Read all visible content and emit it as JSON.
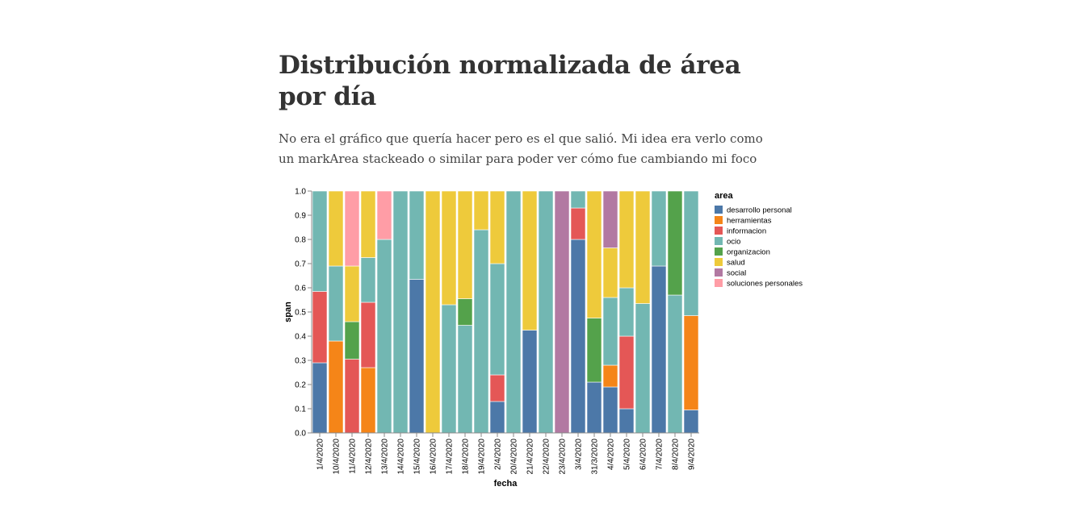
{
  "header": {
    "title": "Distribución normalizada de área por día",
    "subtitle": "No era el gráfico que quería hacer pero es el que salió. Mi idea era verlo como un markArea stackeado o similar para poder ver cómo fue cambiando mi foco"
  },
  "chart_data": {
    "type": "bar",
    "stacked": "normalized",
    "title": "",
    "xlabel": "fecha",
    "ylabel": "span",
    "ylim": [
      0,
      1
    ],
    "yticks": [
      "0.0",
      "0.1",
      "0.2",
      "0.3",
      "0.4",
      "0.5",
      "0.6",
      "0.7",
      "0.8",
      "0.9",
      "1.0"
    ],
    "legend_title": "area",
    "legend_position": "right",
    "grid": false,
    "categories": [
      "1/4/2020",
      "10/4/2020",
      "11/4/2020",
      "12/4/2020",
      "13/4/2020",
      "14/4/2020",
      "15/4/2020",
      "16/4/2020",
      "17/4/2020",
      "18/4/2020",
      "19/4/2020",
      "2/4/2020",
      "20/4/2020",
      "21/4/2020",
      "22/4/2020",
      "23/4/2020",
      "3/4/2020",
      "31/3/2020",
      "4/4/2020",
      "5/4/2020",
      "6/4/2020",
      "7/4/2020",
      "8/4/2020",
      "9/4/2020"
    ],
    "series": [
      {
        "name": "desarrollo personal",
        "color": "#4c78a8",
        "values": [
          0.29,
          0,
          0,
          0,
          0,
          0,
          0.635,
          0,
          0,
          0,
          0,
          0.13,
          0,
          0.425,
          0,
          0,
          0.8,
          0.21,
          0.19,
          0.1,
          0,
          0.69,
          0,
          0.095
        ]
      },
      {
        "name": "herramientas",
        "color": "#f58518",
        "values": [
          0,
          0.38,
          0,
          0.27,
          0,
          0,
          0,
          0,
          0,
          0,
          0,
          0,
          0,
          0,
          0,
          0,
          0,
          0,
          0.09,
          0,
          0,
          0,
          0,
          0.39
        ]
      },
      {
        "name": "informacion",
        "color": "#e45756",
        "values": [
          0.295,
          0,
          0.305,
          0.27,
          0,
          0,
          0,
          0,
          0,
          0,
          0,
          0.11,
          0,
          0,
          0,
          0,
          0.13,
          0,
          0,
          0.3,
          0,
          0,
          0,
          0
        ]
      },
      {
        "name": "ocio",
        "color": "#72b7b2",
        "values": [
          0.415,
          0.31,
          0,
          0.185,
          0.8,
          1,
          0.365,
          0,
          0.53,
          0.445,
          0.84,
          0.46,
          1,
          0,
          1,
          0,
          0.07,
          0,
          0.28,
          0.2,
          0.535,
          0.31,
          0.57,
          0.515
        ]
      },
      {
        "name": "organizacion",
        "color": "#54a24b",
        "values": [
          0,
          0,
          0.155,
          0,
          0,
          0,
          0,
          0,
          0,
          0.11,
          0,
          0,
          0,
          0,
          0,
          0,
          0,
          0.265,
          0,
          0,
          0,
          0,
          0.43,
          0
        ]
      },
      {
        "name": "salud",
        "color": "#eeca3b",
        "values": [
          0,
          0.31,
          0.23,
          0.275,
          0,
          0,
          0,
          1,
          0.47,
          0.445,
          0.16,
          0.3,
          0,
          0.575,
          0,
          0,
          0,
          0.525,
          0.205,
          0.4,
          0.465,
          0,
          0,
          0
        ]
      },
      {
        "name": "social",
        "color": "#b279a2",
        "values": [
          0,
          0,
          0,
          0,
          0,
          0,
          0,
          0,
          0,
          0,
          0,
          0,
          0,
          0,
          0,
          1,
          0,
          0,
          0.235,
          0,
          0,
          0,
          0,
          0
        ]
      },
      {
        "name": "soluciones personales",
        "color": "#ff9da6",
        "values": [
          0,
          0,
          0.31,
          0,
          0.2,
          0,
          0,
          0,
          0,
          0,
          0,
          0,
          0,
          0,
          0,
          0,
          0,
          0,
          0,
          0,
          0,
          0,
          0,
          0
        ]
      }
    ]
  }
}
